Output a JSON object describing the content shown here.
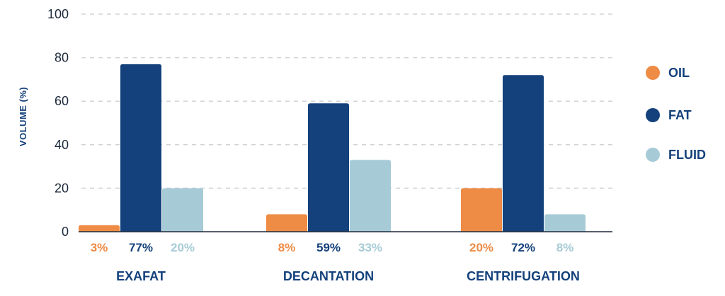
{
  "chart_data": {
    "type": "bar",
    "categories": [
      "EXAFAT",
      "DECANTATION",
      "CENTRIFUGATION"
    ],
    "series": [
      {
        "name": "OIL",
        "color": "#ee8b45",
        "values": [
          3,
          8,
          20
        ],
        "labels": [
          "3%",
          "8%",
          "20%"
        ]
      },
      {
        "name": "FAT",
        "color": "#14417b",
        "values": [
          77,
          59,
          72
        ],
        "labels": [
          "77%",
          "59%",
          "72%"
        ]
      },
      {
        "name": "FLUID",
        "color": "#a6cbd6",
        "values": [
          20,
          33,
          8
        ],
        "labels": [
          "20%",
          "33%",
          "8%"
        ]
      }
    ],
    "ylabel": "VOLUME (%)",
    "xlabel": "",
    "title": "",
    "ylim": [
      0,
      100
    ],
    "yticks": [
      0,
      20,
      40,
      60,
      80,
      100
    ],
    "grid": true,
    "legend_position": "right"
  }
}
